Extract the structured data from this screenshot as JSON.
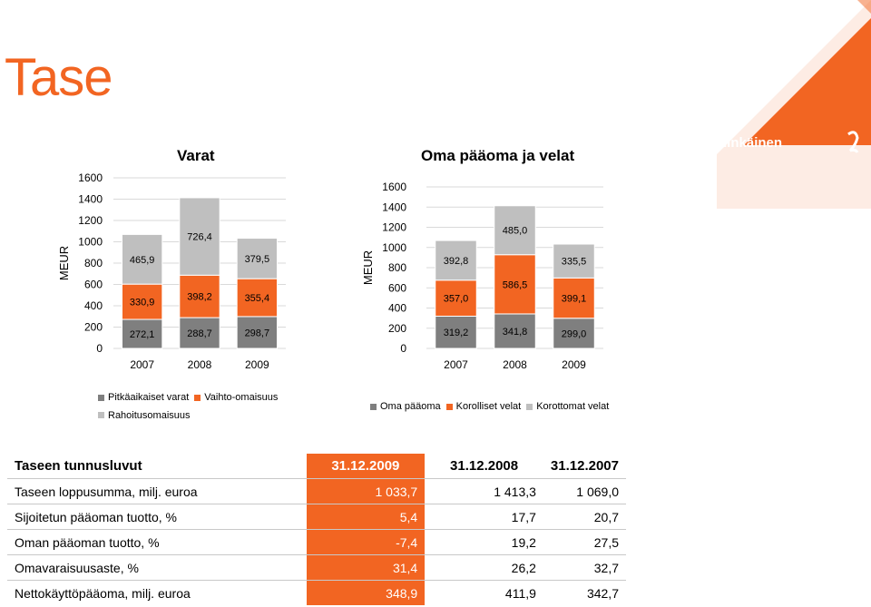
{
  "slide": {
    "title": "Tase"
  },
  "logo": {
    "text": "Lemminkäinen",
    "color": "#f26522"
  },
  "colors": {
    "accent": "#f26522",
    "dark": "#7f7f7f",
    "orange": "#f26522",
    "light": "#bfbfbf"
  },
  "chart_data": [
    {
      "type": "bar",
      "stacked": true,
      "title": "Varat",
      "ylabel": "MEUR",
      "categories": [
        "2007",
        "2008",
        "2009"
      ],
      "series": [
        {
          "name": "Pitkäaikaiset varat",
          "values": [
            272.1,
            288.7,
            298.7
          ],
          "labels": [
            "272,1",
            "288,7",
            "298,7"
          ],
          "color": "#7f7f7f"
        },
        {
          "name": "Vaihto-omaisuus",
          "values": [
            330.9,
            398.2,
            355.4
          ],
          "labels": [
            "330,9",
            "398,2",
            "355,4"
          ],
          "color": "#f26522"
        },
        {
          "name": "Rahoitusomaisuus",
          "values": [
            465.9,
            726.4,
            379.5
          ],
          "labels": [
            "465,9",
            "726,4",
            "379,5"
          ],
          "color": "#bfbfbf"
        }
      ],
      "yticks": [
        "0",
        "200",
        "400",
        "600",
        "800",
        "1000",
        "1200",
        "1400",
        "1600"
      ],
      "ylim": [
        0,
        1600
      ],
      "grid": true
    },
    {
      "type": "bar",
      "stacked": true,
      "title": "Oma pääoma ja velat",
      "ylabel": "MEUR",
      "categories": [
        "2007",
        "2008",
        "2009"
      ],
      "series": [
        {
          "name": "Oma pääoma",
          "values": [
            319.2,
            341.8,
            299.0
          ],
          "labels": [
            "319,2",
            "341,8",
            "299,0"
          ],
          "color": "#7f7f7f"
        },
        {
          "name": "Korolliset velat",
          "values": [
            357.0,
            586.5,
            399.1
          ],
          "labels": [
            "357,0",
            "586,5",
            "399,1"
          ],
          "color": "#f26522"
        },
        {
          "name": "Korottomat velat",
          "values": [
            392.8,
            485.0,
            335.5
          ],
          "labels": [
            "392,8",
            "485,0",
            "335,5"
          ],
          "color": "#bfbfbf"
        }
      ],
      "yticks": [
        "0",
        "200",
        "400",
        "600",
        "800",
        "1000",
        "1200",
        "1400",
        "1600"
      ],
      "ylim": [
        0,
        1600
      ],
      "grid": true
    }
  ],
  "table": {
    "header": [
      "Taseen tunnusluvut",
      "31.12.2009",
      "31.12.2008",
      "31.12.2007"
    ],
    "rows": [
      [
        "Taseen loppusumma, milj. euroa",
        "1 033,7",
        "1 413,3",
        "1 069,0"
      ],
      [
        "Sijoitetun pääoman tuotto, %",
        "5,4",
        "17,7",
        "20,7"
      ],
      [
        "Oman pääoman tuotto, %",
        "-7,4",
        "19,2",
        "27,5"
      ],
      [
        "Omavaraisuusaste, %",
        "31,4",
        "26,2",
        "32,7"
      ],
      [
        "Nettokäyttöpääoma, milj. euroa",
        "348,9",
        "411,9",
        "342,7"
      ]
    ]
  }
}
